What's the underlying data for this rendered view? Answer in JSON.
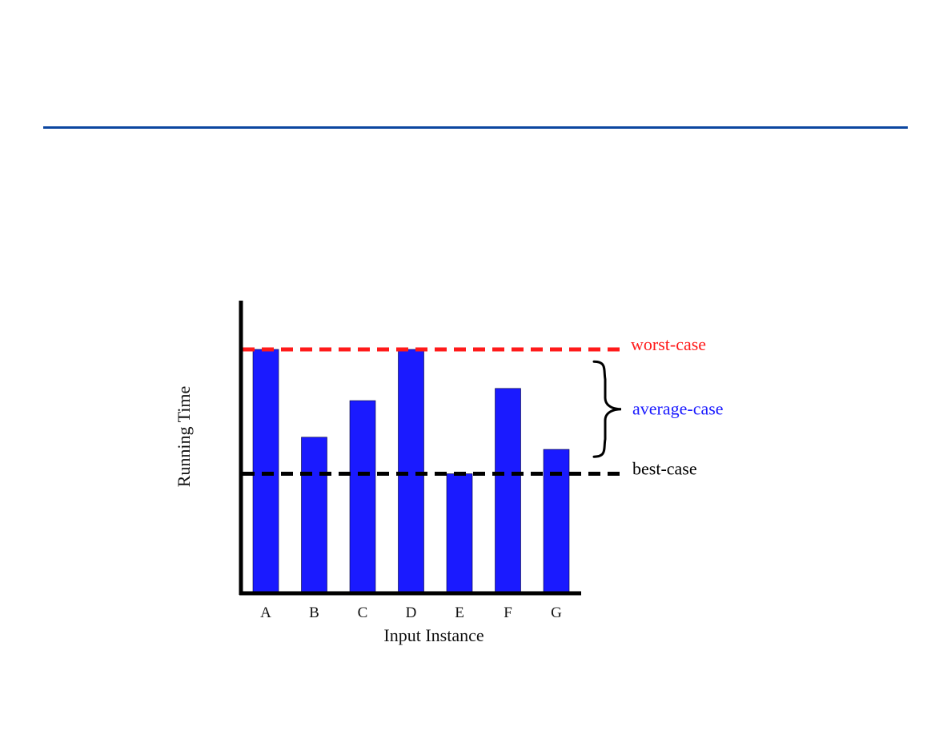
{
  "colors": {
    "rule": "#0b46a0",
    "bar": "#1a1aff",
    "axis": "#000000",
    "worst": "#ff1a1a",
    "average": "#1a1aff",
    "best": "#000000"
  },
  "chart_data": {
    "type": "bar",
    "categories": [
      "A",
      "B",
      "C",
      "D",
      "E",
      "F",
      "G"
    ],
    "values": [
      100,
      64,
      79,
      100,
      49,
      84,
      59
    ],
    "xlabel": "Input Instance",
    "ylabel": "Running Time",
    "ylim": [
      0,
      120
    ],
    "grid": false,
    "reference_lines": [
      {
        "label": "worst-case",
        "value": 100,
        "color": "#ff1a1a",
        "style": "dashed"
      },
      {
        "label": "best-case",
        "value": 49,
        "color": "#000000",
        "style": "dashed"
      }
    ],
    "range_annotation": {
      "label": "average-case",
      "from": 56,
      "to": 95,
      "color": "#1a1aff"
    }
  }
}
